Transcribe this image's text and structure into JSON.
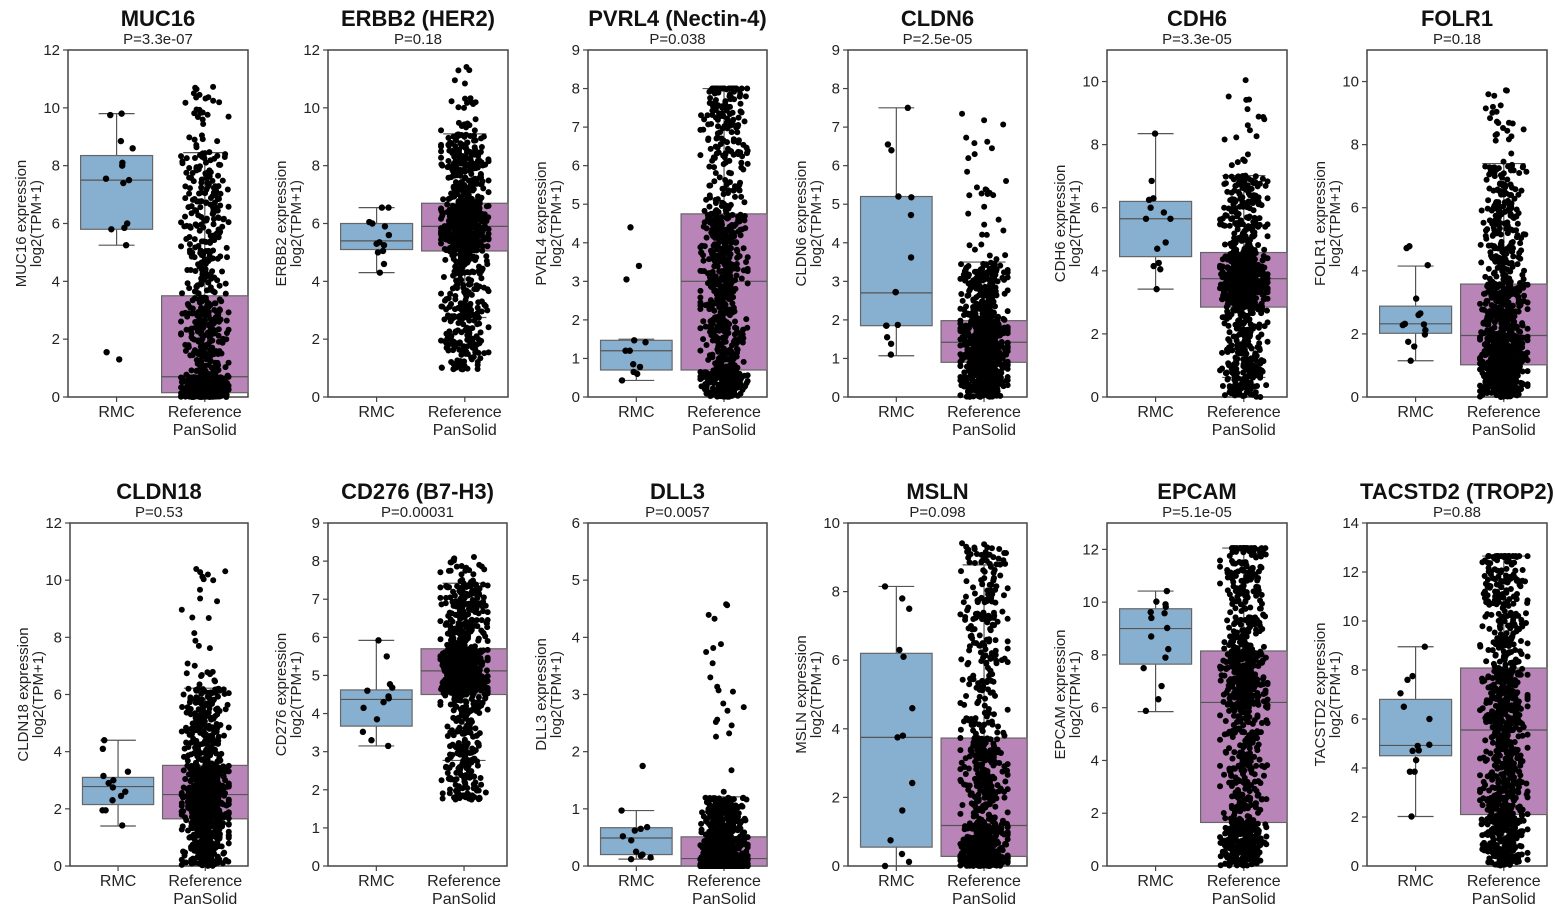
{
  "chart_data": {
    "type": "box",
    "groups": [
      "RMC",
      "Reference PanSolid"
    ],
    "group_label_lines": [
      [
        "RMC"
      ],
      [
        "Reference",
        "PanSolid"
      ]
    ],
    "ylabel_suffix": "log2(TPM+1)",
    "colors": {
      "RMC": "#86afd0",
      "Reference PanSolid": "#b985b8",
      "points": "#000000",
      "axis": "#444444"
    },
    "panels": [
      {
        "gene": "MUC16",
        "title": "MUC16",
        "pval": "P=3.3e-07",
        "ylabel": "MUC16 expression",
        "ylim": [
          0,
          12
        ],
        "yticks": [
          0,
          2,
          4,
          6,
          8,
          10,
          12
        ],
        "boxes": [
          {
            "group": "RMC",
            "q1": 5.8,
            "median": 7.5,
            "q3": 8.35,
            "whisker_low": 5.25,
            "whisker_high": 9.8,
            "points": [
              9.8,
              9.75,
              8.85,
              8.6,
              8.1,
              8.0,
              7.55,
              7.5,
              7.4,
              6.0,
              5.85,
              5.8,
              5.25,
              1.55,
              1.3
            ]
          },
          {
            "group": "Reference PanSolid",
            "q1": 0.15,
            "median": 0.7,
            "q3": 3.5,
            "whisker_low": 0,
            "whisker_high": 8.45,
            "max": 10.8,
            "min": 0
          }
        ]
      },
      {
        "gene": "ERBB2",
        "title": "ERBB2 (HER2)",
        "pval": "P=0.18",
        "ylabel": "ERBB2 expression",
        "ylim": [
          0,
          12
        ],
        "yticks": [
          0,
          2,
          4,
          6,
          8,
          10,
          12
        ],
        "boxes": [
          {
            "group": "RMC",
            "q1": 5.1,
            "median": 5.4,
            "q3": 6.0,
            "whisker_low": 4.3,
            "whisker_high": 6.55,
            "points": [
              6.55,
              6.55,
              6.05,
              6.0,
              5.9,
              5.6,
              5.35,
              5.3,
              5.25,
              5.05,
              5.0,
              4.6,
              4.3
            ]
          },
          {
            "group": "Reference PanSolid",
            "q1": 5.05,
            "median": 5.9,
            "q3": 6.7,
            "whisker_low": 2.75,
            "whisker_high": 9.1,
            "max": 11.45,
            "min": 0.95
          }
        ]
      },
      {
        "gene": "PVRL4",
        "title": "PVRL4 (Nectin-4)",
        "pval": "P=0.038",
        "ylabel": "PVRL4 expression",
        "ylim": [
          0,
          9
        ],
        "yticks": [
          0,
          1,
          2,
          3,
          4,
          5,
          6,
          7,
          8,
          9
        ],
        "boxes": [
          {
            "group": "RMC",
            "q1": 0.7,
            "median": 1.2,
            "q3": 1.47,
            "whisker_low": 0.43,
            "whisker_high": 1.5,
            "points": [
              4.4,
              3.4,
              3.05,
              1.47,
              1.42,
              1.2,
              1.2,
              0.85,
              0.78,
              0.65,
              0.6,
              0.43
            ]
          },
          {
            "group": "Reference PanSolid",
            "q1": 0.7,
            "median": 3.0,
            "q3": 4.75,
            "whisker_low": 0,
            "whisker_high": 8.0,
            "max": 8.0,
            "min": 0
          }
        ]
      },
      {
        "gene": "CLDN6",
        "title": "CLDN6",
        "pval": "P=2.5e-05",
        "ylabel": "CLDN6 expression",
        "ylim": [
          0,
          9
        ],
        "yticks": [
          0,
          1,
          2,
          3,
          4,
          5,
          6,
          7,
          8,
          9
        ],
        "boxes": [
          {
            "group": "RMC",
            "q1": 1.85,
            "median": 2.7,
            "q3": 5.2,
            "whisker_low": 1.07,
            "whisker_high": 7.5,
            "points": [
              7.5,
              6.55,
              6.4,
              5.2,
              5.18,
              4.72,
              3.62,
              2.72,
              2.72,
              1.87,
              1.85,
              1.85,
              1.55,
              1.38,
              1.1
            ]
          },
          {
            "group": "Reference PanSolid",
            "q1": 0.9,
            "median": 1.42,
            "q3": 1.98,
            "whisker_low": 0,
            "whisker_high": 3.5,
            "max": 7.6,
            "min": 0
          }
        ]
      },
      {
        "gene": "CDH6",
        "title": "CDH6",
        "pval": "P=3.3e-05",
        "ylabel": "CDH6 expression",
        "ylim": [
          0,
          11
        ],
        "yticks": [
          0,
          2,
          4,
          6,
          8,
          10
        ],
        "boxes": [
          {
            "group": "RMC",
            "q1": 4.45,
            "median": 5.65,
            "q3": 6.2,
            "whisker_low": 3.42,
            "whisker_high": 8.35,
            "points": [
              8.35,
              6.85,
              6.3,
              6.25,
              6.0,
              5.85,
              5.65,
              5.65,
              4.9,
              4.7,
              4.25,
              4.15,
              4.05,
              3.42
            ]
          },
          {
            "group": "Reference PanSolid",
            "q1": 2.85,
            "median": 3.75,
            "q3": 4.58,
            "whisker_low": 0.62,
            "whisker_high": 7.02,
            "max": 10.05,
            "min": 0
          }
        ]
      },
      {
        "gene": "FOLR1",
        "title": "FOLR1",
        "pval": "P=0.18",
        "ylabel": "FOLR1 expression",
        "ylim": [
          0,
          11
        ],
        "yticks": [
          0,
          2,
          4,
          6,
          8,
          10
        ],
        "boxes": [
          {
            "group": "RMC",
            "q1": 2.02,
            "median": 2.32,
            "q3": 2.88,
            "whisker_low": 1.15,
            "whisker_high": 4.15,
            "points": [
              4.78,
              4.72,
              4.18,
              3.12,
              2.65,
              2.6,
              2.32,
              2.3,
              2.28,
              2.12,
              1.98,
              1.75,
              1.6,
              1.15
            ]
          },
          {
            "group": "Reference PanSolid",
            "q1": 1.02,
            "median": 1.95,
            "q3": 3.58,
            "whisker_low": 0,
            "whisker_high": 7.4,
            "max": 10.05,
            "min": 0
          }
        ]
      },
      {
        "gene": "CLDN18",
        "title": "CLDN18",
        "pval": "P=0.53",
        "ylabel": "CLDN18 expression",
        "ylim": [
          0,
          12
        ],
        "yticks": [
          0,
          2,
          4,
          6,
          8,
          10,
          12
        ],
        "boxes": [
          {
            "group": "RMC",
            "q1": 2.15,
            "median": 2.78,
            "q3": 3.1,
            "whisker_low": 1.4,
            "whisker_high": 4.4,
            "points": [
              4.4,
              4.1,
              3.3,
              3.15,
              3.0,
              2.9,
              2.75,
              2.6,
              2.45,
              2.3,
              1.95,
              1.95,
              1.42
            ]
          },
          {
            "group": "Reference PanSolid",
            "q1": 1.65,
            "median": 2.5,
            "q3": 3.52,
            "whisker_low": 0,
            "whisker_high": 6.22,
            "max": 10.55,
            "min": 0
          }
        ]
      },
      {
        "gene": "CD276",
        "title": "CD276 (B7-H3)",
        "pval": "P=0.00031",
        "ylabel": "CD276 expression",
        "ylim": [
          0,
          9
        ],
        "yticks": [
          0,
          1,
          2,
          3,
          4,
          5,
          6,
          7,
          8,
          9
        ],
        "boxes": [
          {
            "group": "RMC",
            "q1": 3.67,
            "median": 4.37,
            "q3": 4.62,
            "whisker_low": 3.15,
            "whisker_high": 5.92,
            "points": [
              5.92,
              5.5,
              4.77,
              4.68,
              4.6,
              4.45,
              4.4,
              4.3,
              4.15,
              3.85,
              3.52,
              3.3,
              3.15
            ]
          },
          {
            "group": "Reference PanSolid",
            "q1": 4.5,
            "median": 5.12,
            "q3": 5.7,
            "whisker_low": 2.77,
            "whisker_high": 7.42,
            "max": 8.12,
            "min": 1.72
          }
        ]
      },
      {
        "gene": "DLL3",
        "title": "DLL3",
        "pval": "P=0.0057",
        "ylabel": "DLL3 expression",
        "ylim": [
          0,
          6
        ],
        "yticks": [
          0,
          1,
          2,
          3,
          4,
          5,
          6
        ],
        "boxes": [
          {
            "group": "RMC",
            "q1": 0.2,
            "median": 0.49,
            "q3": 0.67,
            "whisker_low": 0.12,
            "whisker_high": 0.97,
            "points": [
              1.75,
              0.97,
              0.68,
              0.65,
              0.62,
              0.52,
              0.45,
              0.25,
              0.2,
              0.18,
              0.15,
              0.12
            ]
          },
          {
            "group": "Reference PanSolid",
            "q1": 0,
            "median": 0.13,
            "q3": 0.51,
            "whisker_low": 0,
            "whisker_high": 1.21,
            "max": 5.05,
            "min": 0
          }
        ]
      },
      {
        "gene": "MSLN",
        "title": "MSLN",
        "pval": "P=0.098",
        "ylabel": "MSLN expression",
        "ylim": [
          0,
          10
        ],
        "yticks": [
          0,
          2,
          4,
          6,
          8,
          10
        ],
        "boxes": [
          {
            "group": "RMC",
            "q1": 0.55,
            "median": 3.75,
            "q3": 6.2,
            "whisker_low": 0,
            "whisker_high": 8.15,
            "points": [
              8.15,
              7.8,
              7.5,
              6.3,
              6.1,
              4.6,
              3.8,
              3.75,
              2.42,
              1.62,
              0.75,
              0.35,
              0.12,
              0.0
            ]
          },
          {
            "group": "Reference PanSolid",
            "q1": 0.28,
            "median": 1.18,
            "q3": 3.73,
            "whisker_low": 0,
            "whisker_high": 8.78,
            "max": 9.45,
            "min": 0
          }
        ]
      },
      {
        "gene": "EPCAM",
        "title": "EPCAM",
        "pval": "P=5.1e-05",
        "ylabel": "EPCAM expression",
        "ylim": [
          0,
          13
        ],
        "yticks": [
          0,
          2,
          4,
          6,
          8,
          10,
          12
        ],
        "boxes": [
          {
            "group": "RMC",
            "q1": 7.65,
            "median": 9.0,
            "q3": 9.75,
            "whisker_low": 5.85,
            "whisker_high": 10.42,
            "points": [
              10.42,
              10.02,
              9.92,
              9.82,
              9.62,
              9.58,
              9.4,
              9.02,
              8.7,
              8.22,
              7.9,
              7.5,
              6.82,
              6.32,
              5.88
            ]
          },
          {
            "group": "Reference PanSolid",
            "q1": 1.65,
            "median": 6.2,
            "q3": 8.15,
            "whisker_low": 0,
            "whisker_high": 12.05,
            "max": 12.05,
            "min": 0
          }
        ]
      },
      {
        "gene": "TACSTD2",
        "title": "TACSTD2 (TROP2)",
        "pval": "P=0.88",
        "ylabel": "TACSTD2 expression",
        "ylim": [
          0,
          14
        ],
        "yticks": [
          0,
          2,
          4,
          6,
          8,
          10,
          12,
          14
        ],
        "boxes": [
          {
            "group": "RMC",
            "q1": 4.5,
            "median": 4.92,
            "q3": 6.8,
            "whisker_low": 2.02,
            "whisker_high": 8.95,
            "points": [
              8.95,
              7.75,
              7.6,
              7.05,
              6.5,
              6.0,
              4.95,
              4.9,
              4.72,
              4.7,
              4.32,
              3.85,
              3.85,
              2.02
            ]
          },
          {
            "group": "Reference PanSolid",
            "q1": 2.1,
            "median": 5.55,
            "q3": 8.08,
            "whisker_low": 0,
            "whisker_high": 12.65,
            "max": 12.65,
            "min": 0
          }
        ]
      }
    ]
  }
}
